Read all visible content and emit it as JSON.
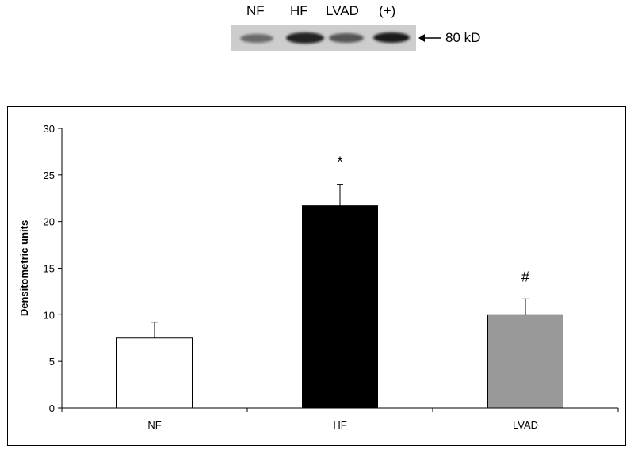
{
  "blot": {
    "lanes": [
      "NF",
      "HF",
      "LVAD",
      "(+)"
    ],
    "marker_label": "80 kD"
  },
  "chart_data": {
    "type": "bar",
    "categories": [
      "NF",
      "HF",
      "LVAD"
    ],
    "values": [
      7.5,
      21.7,
      10.0
    ],
    "errors": [
      1.7,
      2.3,
      1.7
    ],
    "colors": [
      "#ffffff",
      "#000000",
      "#999999"
    ],
    "annotations": [
      "",
      "*",
      "#"
    ],
    "title": "",
    "xlabel": "",
    "ylabel": "Densitometric units",
    "ylim": [
      0,
      30
    ],
    "yticks": [
      0,
      5,
      10,
      15,
      20,
      25,
      30
    ],
    "grid": false
  }
}
